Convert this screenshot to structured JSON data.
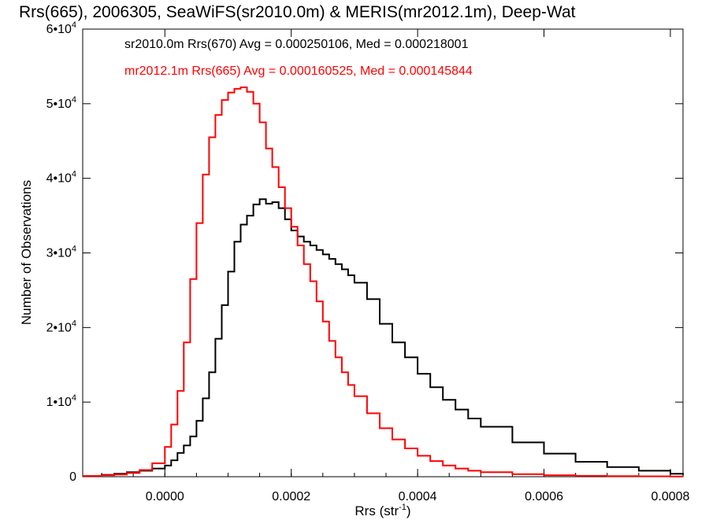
{
  "chart_data": {
    "type": "line",
    "title": "Rrs(665), 2006305, SeaWiFS(sr2010.0m) & MERIS(mr2012.1m), Deep-Wat",
    "xlabel_main": "Rrs (str",
    "xlabel_sup": "-1",
    "xlabel_end": ")",
    "ylabel": "Number of Observations",
    "xlim": [
      -0.00013,
      0.00082
    ],
    "ylim": [
      0,
      60000
    ],
    "x_ticks": [
      {
        "value": 0.0,
        "label": "0.0000"
      },
      {
        "value": 0.0002,
        "label": "0.0002"
      },
      {
        "value": 0.0004,
        "label": "0.0004"
      },
      {
        "value": 0.0006,
        "label": "0.0006"
      },
      {
        "value": 0.0008,
        "label": "0.0008"
      }
    ],
    "y_ticks": [
      {
        "value": 0,
        "base": "0",
        "exp": ""
      },
      {
        "value": 10000,
        "base": "1•10",
        "exp": "4"
      },
      {
        "value": 20000,
        "base": "2•10",
        "exp": "4"
      },
      {
        "value": 30000,
        "base": "3•10",
        "exp": "4"
      },
      {
        "value": 40000,
        "base": "4•10",
        "exp": "4"
      },
      {
        "value": 50000,
        "base": "5•10",
        "exp": "4"
      },
      {
        "value": 60000,
        "base": "6•10",
        "exp": "4"
      }
    ],
    "grid": false,
    "legend_position": "top-left",
    "series": [
      {
        "name": "sr2010.0m Rrs(670) Avg = 0.000250106, Med = 0.000218001",
        "color": "#000000",
        "step": "post",
        "x": [
          -0.00013,
          -0.0001,
          -8e-05,
          -6e-05,
          -4e-05,
          -2e-05,
          0.0,
          1e-05,
          2e-05,
          3e-05,
          4e-05,
          5e-05,
          6e-05,
          7e-05,
          8e-05,
          9e-05,
          0.0001,
          0.00011,
          0.00012,
          0.00013,
          0.00014,
          0.00015,
          0.00016,
          0.00017,
          0.00018,
          0.00019,
          0.0002,
          0.00021,
          0.00022,
          0.00023,
          0.00024,
          0.00025,
          0.00026,
          0.00027,
          0.00028,
          0.00029,
          0.0003,
          0.00032,
          0.00034,
          0.00036,
          0.00038,
          0.0004,
          0.00042,
          0.00044,
          0.00046,
          0.00048,
          0.0005,
          0.00055,
          0.0006,
          0.00065,
          0.0007,
          0.00075,
          0.0008,
          0.00082
        ],
        "y": [
          100,
          250,
          400,
          600,
          800,
          1100,
          1500,
          2200,
          3200,
          4200,
          5400,
          7500,
          10500,
          14000,
          18500,
          23000,
          27500,
          31500,
          33800,
          35000,
          36500,
          37200,
          36600,
          36800,
          36000,
          34500,
          33000,
          32200,
          31500,
          31000,
          30400,
          29800,
          29200,
          28500,
          27800,
          27000,
          26000,
          23800,
          20500,
          18000,
          16000,
          13800,
          12000,
          10300,
          9000,
          7800,
          6700,
          4600,
          3100,
          2000,
          1300,
          800,
          400,
          250
        ]
      },
      {
        "name": "mr2012.1m Rrs(665) Avg = 0.000160525, Med = 0.000145844",
        "color": "#ff0000",
        "step": "post",
        "x": [
          -0.00013,
          -0.0001,
          -8e-05,
          -6e-05,
          -4e-05,
          -2e-05,
          0.0,
          1e-05,
          2e-05,
          3e-05,
          4e-05,
          5e-05,
          6e-05,
          7e-05,
          8e-05,
          9e-05,
          0.0001,
          0.00011,
          0.00012,
          0.00013,
          0.00014,
          0.00015,
          0.00016,
          0.00017,
          0.00018,
          0.00019,
          0.0002,
          0.00021,
          0.00022,
          0.00023,
          0.00024,
          0.00025,
          0.00026,
          0.00027,
          0.00028,
          0.00029,
          0.0003,
          0.00032,
          0.00034,
          0.00036,
          0.00038,
          0.0004,
          0.00042,
          0.00044,
          0.00046,
          0.00048,
          0.0005,
          0.00055,
          0.0006,
          0.00065,
          0.0007,
          0.00075,
          0.0008,
          0.00082
        ],
        "y": [
          100,
          200,
          300,
          500,
          900,
          1800,
          4000,
          7000,
          11500,
          18000,
          26500,
          34000,
          40500,
          45500,
          48500,
          50500,
          51500,
          52000,
          52200,
          51600,
          50000,
          47500,
          44000,
          41500,
          38800,
          36000,
          33500,
          31000,
          28500,
          26200,
          23500,
          20800,
          18200,
          16000,
          14000,
          12300,
          10800,
          8500,
          6500,
          5000,
          3800,
          2800,
          2100,
          1500,
          1100,
          800,
          600,
          350,
          200,
          120,
          80,
          50,
          30,
          20
        ]
      }
    ]
  }
}
